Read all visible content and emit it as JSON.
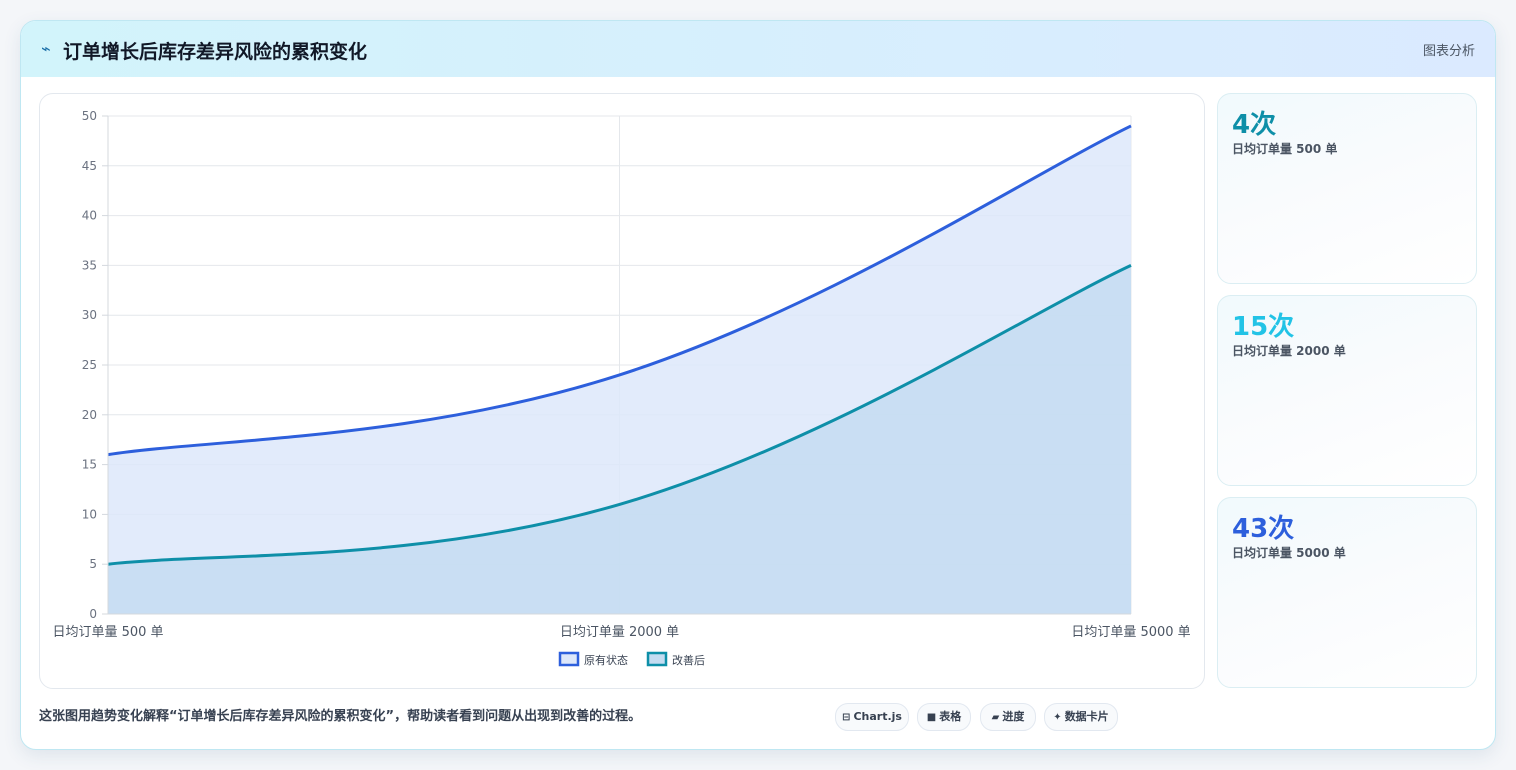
{
  "header": {
    "title": "订单增长后库存差异风险的累积变化",
    "right_label": "图表分析"
  },
  "stats": [
    {
      "value": "4次",
      "label": "日均订单量 500 单",
      "color": "#0e8fa8"
    },
    {
      "value": "15次",
      "label": "日均订单量 2000 单",
      "color": "#22c3e6"
    },
    {
      "value": "43次",
      "label": "日均订单量 5000 单",
      "color": "#2d5fdc"
    }
  ],
  "footer": {
    "description": "这张图用趋势变化解释“订单增长后库存差异风险的累积变化”，帮助读者看到问题从出现到改善的过程。",
    "tags": [
      {
        "icon": "chart-icon",
        "glyph": "⊟",
        "label": "Chart.js"
      },
      {
        "icon": "table-icon",
        "glyph": "■",
        "label": "表格"
      },
      {
        "icon": "progress-icon",
        "glyph": "▰",
        "label": "进度"
      },
      {
        "icon": "sparkle-icon",
        "glyph": "✦",
        "label": "数据卡片"
      }
    ]
  },
  "chart_data": {
    "type": "area",
    "categories": [
      "日均订单量 500 单",
      "日均订单量 2000 单",
      "日均订单量 5000 单"
    ],
    "series": [
      {
        "name": "原有状态",
        "values": [
          16,
          24,
          49
        ],
        "color": "#2d5fdc",
        "fill": "#dde7fa"
      },
      {
        "name": "改善后",
        "values": [
          5,
          11,
          35
        ],
        "color": "#0e8fa8",
        "fill": "#c4dcf1"
      }
    ],
    "ylim": [
      0,
      50
    ],
    "yticks": [
      0,
      5,
      10,
      15,
      20,
      25,
      30,
      35,
      40,
      45,
      50
    ],
    "grid": true,
    "legend": "bottom"
  }
}
